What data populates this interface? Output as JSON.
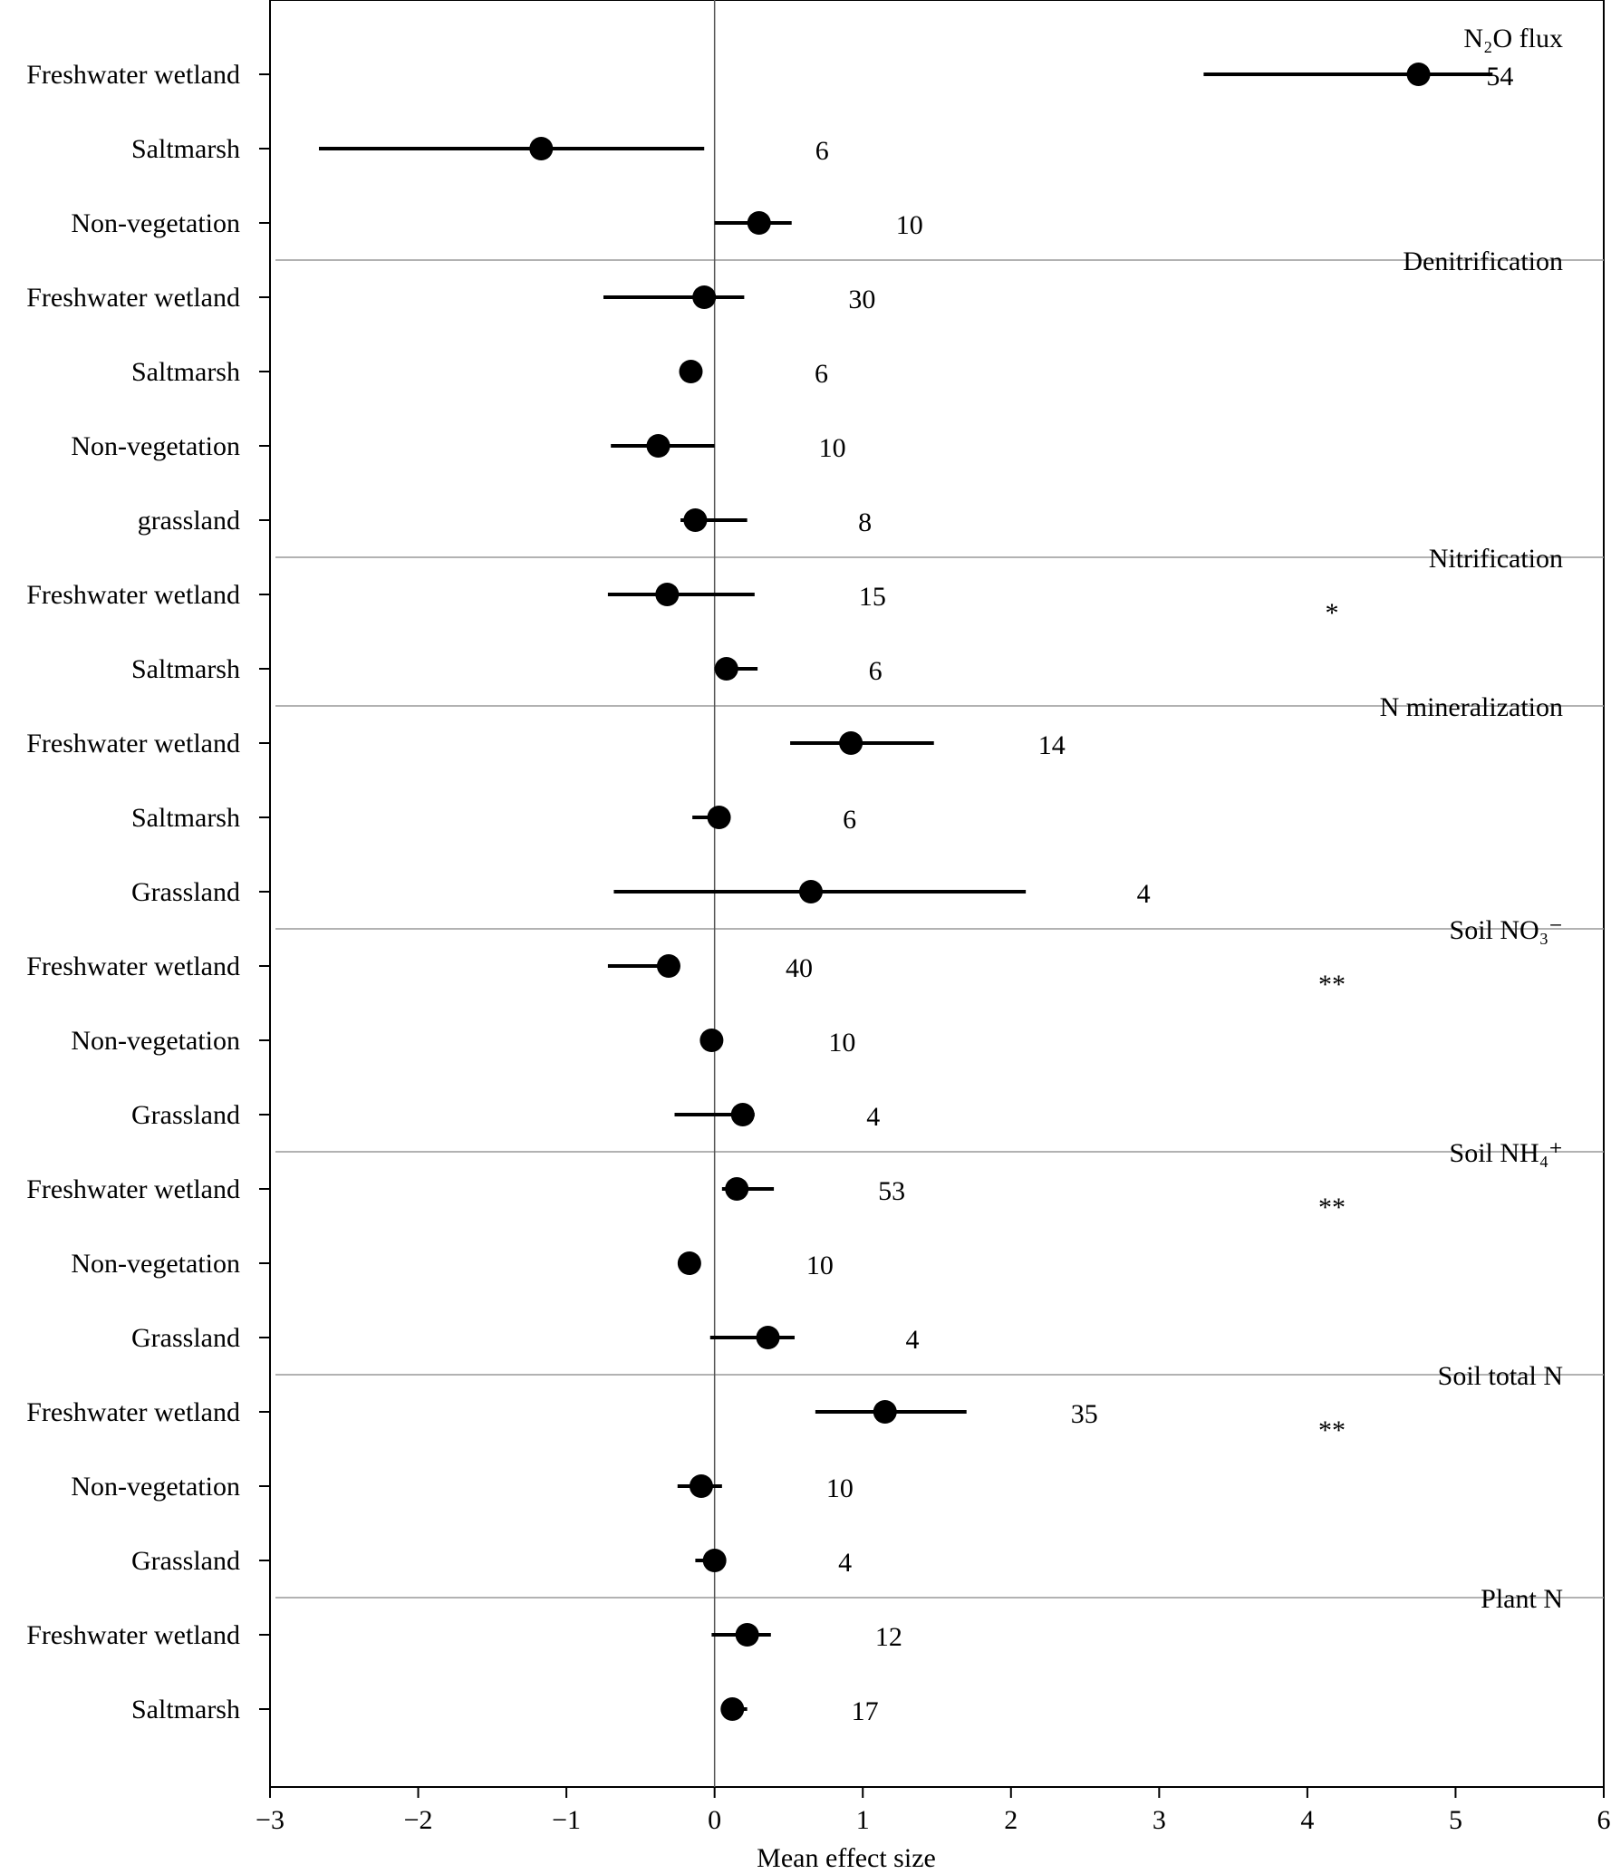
{
  "chart_data": {
    "type": "scatter",
    "xlabel": "Mean effect size",
    "ylabel": "",
    "xlim": [
      -3,
      6
    ],
    "xticks": [
      "−3",
      "−2",
      "−1",
      "0",
      "1",
      "2",
      "3",
      "4",
      "5",
      "6"
    ],
    "grid": false,
    "groups": [
      {
        "label": "N₂O flux",
        "sig": "",
        "rows": [
          {
            "name": "Freshwater wetland",
            "mean": 4.75,
            "lo": 3.3,
            "hi": 5.25,
            "n": "54"
          },
          {
            "name": "Saltmarsh",
            "mean": -1.17,
            "lo": -2.67,
            "hi": -0.07,
            "n": "6"
          },
          {
            "name": "Non-vegetation",
            "mean": 0.3,
            "lo": 0.0,
            "hi": 0.52,
            "n": "10"
          }
        ]
      },
      {
        "label": "Denitrification",
        "sig": "",
        "rows": [
          {
            "name": "Freshwater wetland",
            "mean": -0.07,
            "lo": -0.75,
            "hi": 0.2,
            "n": "30"
          },
          {
            "name": "Saltmarsh",
            "mean": -0.16,
            "lo": -0.16,
            "hi": -0.16,
            "n": "6"
          },
          {
            "name": "Non-vegetation",
            "mean": -0.38,
            "lo": -0.7,
            "hi": 0.0,
            "n": "10"
          },
          {
            "name": "grassland",
            "mean": -0.13,
            "lo": -0.23,
            "hi": 0.22,
            "n": "8"
          }
        ]
      },
      {
        "label": "Nitrification",
        "sig": "*",
        "rows": [
          {
            "name": "Freshwater wetland",
            "mean": -0.32,
            "lo": -0.72,
            "hi": 0.27,
            "n": "15"
          },
          {
            "name": "Saltmarsh",
            "mean": 0.08,
            "lo": 0.0,
            "hi": 0.29,
            "n": "6"
          }
        ]
      },
      {
        "label": "N mineralization",
        "sig": "",
        "rows": [
          {
            "name": "Freshwater wetland",
            "mean": 0.92,
            "lo": 0.51,
            "hi": 1.48,
            "n": "14"
          },
          {
            "name": "Saltmarsh",
            "mean": 0.03,
            "lo": -0.15,
            "hi": 0.08,
            "n": "6"
          },
          {
            "name": "Grassland",
            "mean": 0.65,
            "lo": -0.68,
            "hi": 2.1,
            "n": "4"
          }
        ]
      },
      {
        "label": "Soil NO₃⁻",
        "sig": "**",
        "rows": [
          {
            "name": "Freshwater wetland",
            "mean": -0.31,
            "lo": -0.72,
            "hi": -0.31,
            "n": "40"
          },
          {
            "name": "Non-vegetation",
            "mean": -0.02,
            "lo": -0.02,
            "hi": -0.02,
            "n": "10"
          },
          {
            "name": "Grassland",
            "mean": 0.19,
            "lo": -0.27,
            "hi": 0.27,
            "n": "4"
          }
        ]
      },
      {
        "label": "Soil NH₄⁺",
        "sig": "**",
        "rows": [
          {
            "name": "Freshwater wetland",
            "mean": 0.15,
            "lo": 0.05,
            "hi": 0.4,
            "n": "53"
          },
          {
            "name": "Non-vegetation",
            "mean": -0.17,
            "lo": -0.17,
            "hi": -0.17,
            "n": "10"
          },
          {
            "name": "Grassland",
            "mean": 0.36,
            "lo": -0.03,
            "hi": 0.54,
            "n": "4"
          }
        ]
      },
      {
        "label": "Soil total N",
        "sig": "**",
        "rows": [
          {
            "name": "Freshwater wetland",
            "mean": 1.15,
            "lo": 0.68,
            "hi": 1.7,
            "n": "35"
          },
          {
            "name": "Non-vegetation",
            "mean": -0.09,
            "lo": -0.25,
            "hi": 0.05,
            "n": "10"
          },
          {
            "name": "Grassland",
            "mean": 0.0,
            "lo": -0.13,
            "hi": 0.06,
            "n": "4"
          }
        ]
      },
      {
        "label": "Plant N",
        "sig": "",
        "rows": [
          {
            "name": "Freshwater wetland",
            "mean": 0.22,
            "lo": -0.02,
            "hi": 0.38,
            "n": "12"
          },
          {
            "name": "Saltmarsh",
            "mean": 0.12,
            "lo": 0.05,
            "hi": 0.22,
            "n": "17"
          }
        ]
      }
    ]
  }
}
